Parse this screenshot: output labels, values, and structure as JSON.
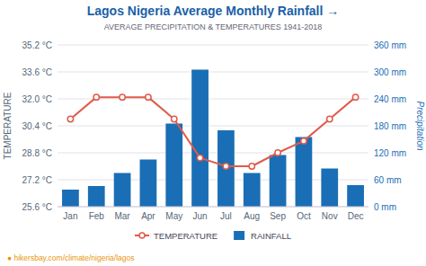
{
  "chart_data": {
    "type": "bar",
    "title": "Lagos Nigeria Average Monthly Rainfall →",
    "subtitle": "AVERAGE PRECIPITATION & TEMPERATURES 1941-2018",
    "categories": [
      "Jan",
      "Feb",
      "Mar",
      "Apr",
      "May",
      "Jun",
      "Jul",
      "Aug",
      "Sep",
      "Oct",
      "Nov",
      "Dec"
    ],
    "series": [
      {
        "name": "TEMPERATURE",
        "type": "line",
        "color": "#e05a4a",
        "marker": "circle",
        "values": [
          30.8,
          32.1,
          32.1,
          32.1,
          30.8,
          28.5,
          28.0,
          28.0,
          28.8,
          29.5,
          30.8,
          32.1
        ]
      },
      {
        "name": "RAINFALL",
        "type": "bar",
        "color": "#1a6eb5",
        "axis": "y2",
        "values": [
          38,
          46,
          75,
          105,
          185,
          305,
          170,
          75,
          115,
          155,
          85,
          48
        ]
      }
    ],
    "ylabel": "TEMPERATURE",
    "y2label": "Precipitation",
    "ylim": [
      25.6,
      35.2
    ],
    "yticks": [
      {
        "value": 25.6,
        "label": "25.6 °C"
      },
      {
        "value": 27.2,
        "label": "27.2 °C"
      },
      {
        "value": 28.8,
        "label": "28.8 °C"
      },
      {
        "value": 30.4,
        "label": "30.4 °C"
      },
      {
        "value": 32.0,
        "label": "32.0 °C"
      },
      {
        "value": 33.6,
        "label": "33.6 °C"
      },
      {
        "value": 35.2,
        "label": "35.2 °C"
      }
    ],
    "y2lim": [
      0,
      360
    ],
    "y2ticks": [
      {
        "value": 0,
        "label": "0 mm"
      },
      {
        "value": 60,
        "label": "60 mm"
      },
      {
        "value": 120,
        "label": "120 mm"
      },
      {
        "value": 180,
        "label": "180 mm"
      },
      {
        "value": 240,
        "label": "240 mm"
      },
      {
        "value": 300,
        "label": "300 mm"
      },
      {
        "value": 360,
        "label": "360 mm"
      }
    ],
    "grid": true,
    "legend": "bottom",
    "annotations": [
      "● hikersbay.com/climate/nigeria/lagos"
    ]
  }
}
